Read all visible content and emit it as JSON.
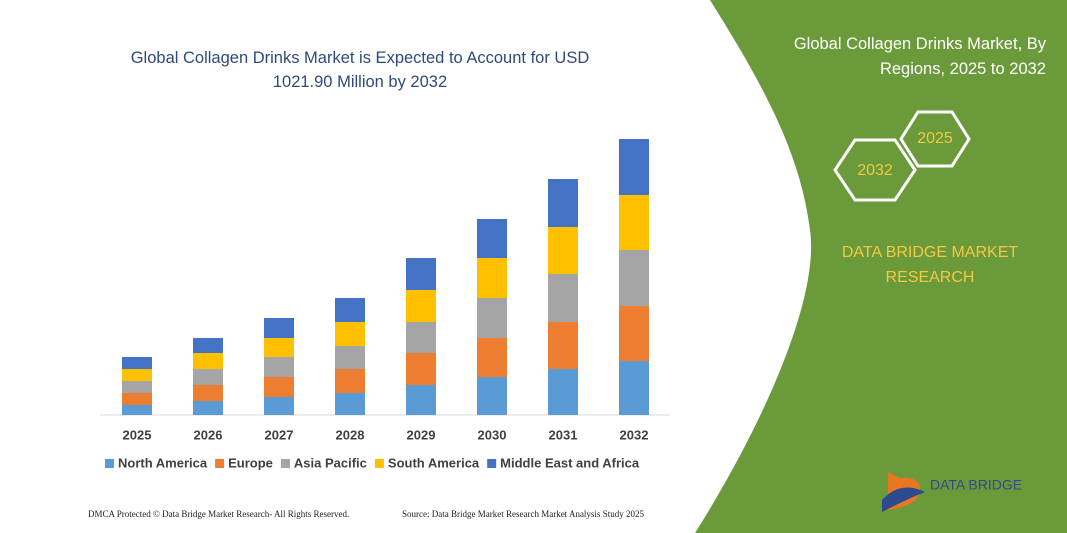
{
  "chart_data": {
    "type": "bar",
    "stacked": true,
    "title": "Global Collagen Drinks Market is Expected to Account for USD 1021.90 Million by 2032",
    "categories": [
      "2025",
      "2026",
      "2027",
      "2028",
      "2029",
      "2030",
      "2031",
      "2032"
    ],
    "series": [
      {
        "name": "North America",
        "color": "#5b9bd5",
        "values": [
          10,
          14,
          18,
          22,
          30,
          38,
          46,
          54
        ]
      },
      {
        "name": "Europe",
        "color": "#ed7d31",
        "values": [
          12,
          16,
          20,
          24,
          32,
          39,
          47,
          55
        ]
      },
      {
        "name": "Asia Pacific",
        "color": "#a5a5a5",
        "values": [
          12,
          16,
          20,
          23,
          31,
          40,
          48,
          56
        ]
      },
      {
        "name": "South America",
        "color": "#ffc000",
        "values": [
          12,
          16,
          19,
          24,
          32,
          40,
          47,
          55
        ]
      },
      {
        "name": "Middle East and Africa",
        "color": "#4472c4",
        "values": [
          12,
          15,
          20,
          24,
          32,
          39,
          48,
          56
        ]
      }
    ]
  },
  "panel": {
    "title": "Global Collagen Drinks Market, By Regions, 2025 to 2032",
    "hex_start": "2025",
    "hex_end": "2032",
    "brand": "DATA BRIDGE MARKET RESEARCH"
  },
  "footer": {
    "left": "DMCA Protected © Data Bridge Market Research- All Rights Reserved.",
    "right": "Source: Data Bridge Market Research Market Analysis Study 2025"
  },
  "logo": {
    "text": "DATA BRIDGE"
  }
}
